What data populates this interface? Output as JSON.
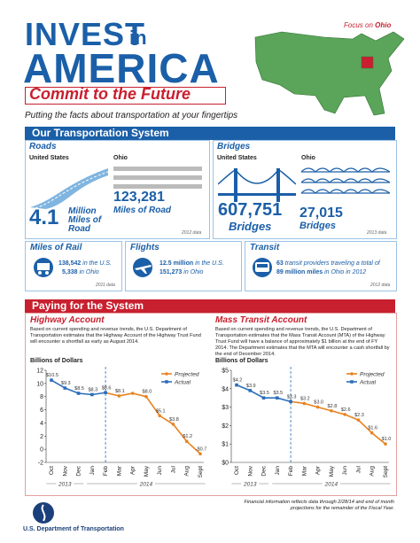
{
  "header": {
    "title_line1": "INVEST",
    "title_in": "in",
    "title_line2": "AMERICA",
    "subtitle": "Commit to the Future",
    "tagline": "Putting the facts about transportation at your fingertips",
    "focus_prefix": "Focus on",
    "focus_state": "Ohio"
  },
  "transportation": {
    "heading": "Our Transportation System",
    "roads": {
      "title": "Roads",
      "us_label": "United States",
      "us_value": "4.1",
      "us_unit": "Million Miles of Road",
      "ohio_label": "Ohio",
      "ohio_value": "123,281",
      "ohio_unit": "Miles of Road",
      "note": "2012 data"
    },
    "bridges": {
      "title": "Bridges",
      "us_label": "United States",
      "us_value": "607,751",
      "us_unit": "Bridges",
      "ohio_label": "Ohio",
      "ohio_value": "27,015",
      "ohio_unit": "Bridges",
      "note": "2013 data"
    },
    "rail": {
      "title": "Miles of Rail",
      "us_value": "138,542",
      "us_text": "in the U.S.",
      "ohio_value": "5,338",
      "ohio_text": "in Ohio",
      "note": "2011 data"
    },
    "flights": {
      "title": "Flights",
      "us_value": "12.5 million",
      "us_text": "in the U.S.",
      "ohio_value": "151,273",
      "ohio_text": "in Ohio"
    },
    "transit": {
      "title": "Transit",
      "line1_value": "63",
      "line1_text": "transit providers traveling a total of",
      "line2_value": "89 million miles",
      "line2_text": "in Ohio in 2012",
      "note": "2012 data"
    }
  },
  "paying": {
    "heading": "Paying for the System",
    "highway_text": "Based on current spending and revenue trends, the U.S. Department of Transportation estimates that the Highway Account of the Highway Trust Fund will encounter a shortfall as early as August 2014.",
    "transit_text": "Based on current spending and revenue trends, the U.S. Department of Transportation estimates that the Mass Transit Account (MTA) of the Highway Trust Fund will have a balance of approximately $1 billion at the end of FY 2014. The Department estimates that the MTA will encounter a cash shortfall by the end of December 2014."
  },
  "chart_data": [
    {
      "type": "line",
      "title": "Highway Account",
      "y_label": "Billions of Dollars",
      "categories": [
        "Oct",
        "Nov",
        "Dec",
        "Jan",
        "Feb",
        "Mar",
        "Apr",
        "May",
        "Jun",
        "Jul",
        "Aug",
        "Sept"
      ],
      "year_labels": [
        "2013",
        "2014"
      ],
      "series": [
        {
          "name": "Projected",
          "color": "#e8821e",
          "values": [
            null,
            null,
            null,
            null,
            8.6,
            8.1,
            8.5,
            8.0,
            5.1,
            3.8,
            1.2,
            -0.7
          ],
          "value_labels": [
            null,
            null,
            null,
            null,
            null,
            "$8.1",
            null,
            "$8.0",
            "$5.1",
            "$3.8",
            "$1.2",
            "-$0.7"
          ]
        },
        {
          "name": "Actual",
          "color": "#2a6ebb",
          "values": [
            10.5,
            9.3,
            8.5,
            8.3,
            8.6,
            null,
            null,
            null,
            null,
            null,
            null,
            null
          ],
          "value_labels": [
            "$10.5",
            "$9.3",
            "$8.5",
            "$8.3",
            "$8.6",
            null,
            null,
            null,
            null,
            null,
            null,
            null
          ]
        }
      ],
      "ylim": [
        -2,
        12
      ],
      "yticks": [
        -2,
        0,
        2,
        4,
        6,
        8,
        10,
        12
      ],
      "grid": false,
      "legend": "upper right"
    },
    {
      "type": "line",
      "title": "Mass Transit Account",
      "y_label": "Billions of Dollars",
      "categories": [
        "Oct",
        "Nov",
        "Dec",
        "Jan",
        "Feb",
        "Mar",
        "Apr",
        "May",
        "Jun",
        "Jul",
        "Aug",
        "Sept"
      ],
      "year_labels": [
        "2013",
        "2014"
      ],
      "series": [
        {
          "name": "Projected",
          "color": "#e8821e",
          "values": [
            null,
            null,
            null,
            null,
            3.3,
            3.2,
            3.0,
            2.8,
            2.6,
            2.3,
            1.6,
            1.0
          ],
          "value_labels": [
            null,
            null,
            null,
            null,
            null,
            "$3.2",
            "$3.0",
            "$2.8",
            "$2.6",
            "$2.3",
            "$1.6",
            "$1.0"
          ]
        },
        {
          "name": "Actual",
          "color": "#2a6ebb",
          "values": [
            4.2,
            3.9,
            3.5,
            3.5,
            3.3,
            null,
            null,
            null,
            null,
            null,
            null,
            null
          ],
          "value_labels": [
            "$4.2",
            "$3.9",
            "$3.5",
            "$3.5",
            "$3.3",
            null,
            null,
            null,
            null,
            null,
            null,
            null
          ]
        }
      ],
      "ylim": [
        0,
        5
      ],
      "yticks": [
        {
          "value": 0,
          "label": "$0"
        },
        {
          "value": 1,
          "label": "$1"
        },
        {
          "value": 2,
          "label": "$2"
        },
        {
          "value": 3,
          "label": "$3"
        },
        {
          "value": 4,
          "label": "$4"
        },
        {
          "value": 5,
          "label": "$5"
        }
      ],
      "grid": false,
      "legend": "upper right"
    }
  ],
  "footer": {
    "note": "Financial information reflects data through 2/28/14 and end of month projections for the remainder of the Fiscal Year.",
    "agency": "U.S. Department of Transportation"
  }
}
